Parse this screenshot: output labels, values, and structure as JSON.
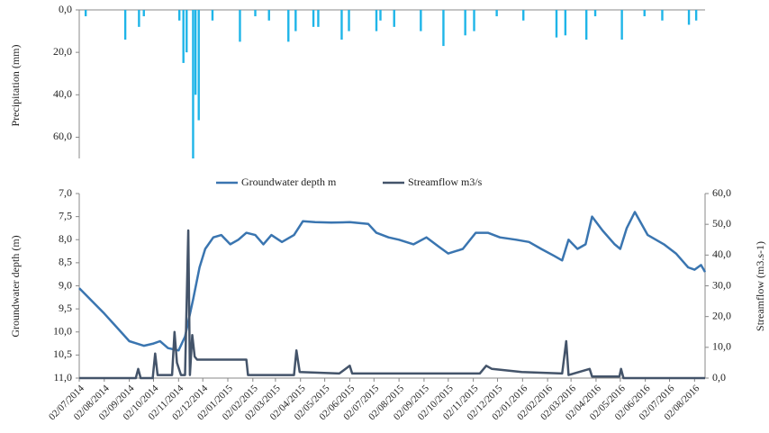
{
  "chart_data": [
    {
      "type": "bar",
      "y_label": "Precipitation (mm)",
      "color": "#1fb5e8",
      "y_inverted": true,
      "xlim": [
        "2014-07-02",
        "2016-08-15"
      ],
      "ylim": [
        0,
        70
      ],
      "yticks": [
        {
          "value": 0,
          "label": "0,0"
        },
        {
          "value": 20,
          "label": "20,0"
        },
        {
          "value": 40,
          "label": "40,0"
        },
        {
          "value": 60,
          "label": "60,0"
        }
      ],
      "x": [
        "2014-07-10",
        "2014-08-28",
        "2014-09-14",
        "2014-09-20",
        "2014-11-03",
        "2014-11-08",
        "2014-11-12",
        "2014-11-20",
        "2014-11-23",
        "2014-11-27",
        "2014-12-14",
        "2015-01-17",
        "2015-02-05",
        "2015-02-22",
        "2015-03-18",
        "2015-03-27",
        "2015-04-18",
        "2015-04-24",
        "2015-05-23",
        "2015-06-01",
        "2015-07-05",
        "2015-07-10",
        "2015-07-27",
        "2015-08-29",
        "2015-09-26",
        "2015-10-23",
        "2015-11-03",
        "2015-12-01",
        "2016-01-03",
        "2016-02-13",
        "2016-02-24",
        "2016-03-21",
        "2016-04-01",
        "2016-05-04",
        "2016-06-01",
        "2016-06-23",
        "2016-07-26",
        "2016-08-04"
      ],
      "values": [
        3,
        14,
        8,
        3,
        5,
        25,
        20,
        70,
        40,
        52,
        5,
        15,
        3,
        5,
        15,
        10,
        8,
        8,
        14,
        10,
        10,
        5,
        8,
        10,
        17,
        12,
        10,
        3,
        5,
        13,
        12,
        14,
        3,
        14,
        3,
        5,
        7,
        5
      ]
    },
    {
      "type": "line",
      "y_label": "Groundwater depth (m)",
      "y2_label": "Streamflow  (m3.s-1)",
      "y_inverted": true,
      "xlim": [
        "2014-07-02",
        "2016-08-15"
      ],
      "ylim": [
        7,
        11
      ],
      "y2lim": [
        0,
        60
      ],
      "yticks": [
        {
          "value": 7,
          "label": "7,0"
        },
        {
          "value": 7.5,
          "label": "7,5"
        },
        {
          "value": 8,
          "label": "8,0"
        },
        {
          "value": 8.5,
          "label": "8,5"
        },
        {
          "value": 9,
          "label": "9,0"
        },
        {
          "value": 9.5,
          "label": "9,5"
        },
        {
          "value": 10,
          "label": "10,0"
        },
        {
          "value": 10.5,
          "label": "10,5"
        },
        {
          "value": 11,
          "label": "11,0"
        }
      ],
      "y2ticks": [
        {
          "value": 0,
          "label": "0,0"
        },
        {
          "value": 10,
          "label": "10,0"
        },
        {
          "value": 20,
          "label": "20,0"
        },
        {
          "value": 30,
          "label": "30,0"
        },
        {
          "value": 40,
          "label": "40,0"
        },
        {
          "value": 50,
          "label": "50,0"
        },
        {
          "value": 60,
          "label": "60,0"
        }
      ],
      "xticks": [
        {
          "value": "2014-07-02",
          "label": "02/07/2014"
        },
        {
          "value": "2014-08-02",
          "label": "02/08/2014"
        },
        {
          "value": "2014-09-02",
          "label": "02/09/2014"
        },
        {
          "value": "2014-10-02",
          "label": "02/10/2014"
        },
        {
          "value": "2014-11-02",
          "label": "02/11/2014"
        },
        {
          "value": "2014-12-02",
          "label": "02/12/2014"
        },
        {
          "value": "2015-01-02",
          "label": "02/01/2015"
        },
        {
          "value": "2015-02-02",
          "label": "02/02/2015"
        },
        {
          "value": "2015-03-02",
          "label": "02/03/2015"
        },
        {
          "value": "2015-04-02",
          "label": "02/04/2015"
        },
        {
          "value": "2015-05-02",
          "label": "02/05/2015"
        },
        {
          "value": "2015-06-02",
          "label": "02/06/2015"
        },
        {
          "value": "2015-07-02",
          "label": "02/07/2015"
        },
        {
          "value": "2015-08-02",
          "label": "02/08/2015"
        },
        {
          "value": "2015-09-02",
          "label": "02/09/2015"
        },
        {
          "value": "2015-10-02",
          "label": "02/10/2015"
        },
        {
          "value": "2015-11-02",
          "label": "02/11/2015"
        },
        {
          "value": "2015-12-02",
          "label": "02/12/2015"
        },
        {
          "value": "2016-01-02",
          "label": "02/01/2016"
        },
        {
          "value": "2016-02-02",
          "label": "02/02/2016"
        },
        {
          "value": "2016-03-02",
          "label": "02/03/2016"
        },
        {
          "value": "2016-04-02",
          "label": "02/04/2016"
        },
        {
          "value": "2016-05-02",
          "label": "02/05/2016"
        },
        {
          "value": "2016-06-02",
          "label": "02/06/2016"
        },
        {
          "value": "2016-07-02",
          "label": "02/07/2016"
        },
        {
          "value": "2016-08-02",
          "label": "02/08/2016"
        }
      ],
      "series": [
        {
          "name": "Groundwater depth m",
          "color": "#3a75b0",
          "x": [
            "2014-07-02",
            "2014-08-02",
            "2014-09-02",
            "2014-09-20",
            "2014-10-02",
            "2014-10-10",
            "2014-10-20",
            "2014-11-02",
            "2014-11-10",
            "2014-11-20",
            "2014-11-28",
            "2014-12-05",
            "2014-12-15",
            "2014-12-25",
            "2015-01-05",
            "2015-01-15",
            "2015-01-25",
            "2015-02-05",
            "2015-02-15",
            "2015-02-25",
            "2015-03-10",
            "2015-03-25",
            "2015-04-05",
            "2015-04-20",
            "2015-05-10",
            "2015-06-02",
            "2015-06-25",
            "2015-07-05",
            "2015-07-20",
            "2015-08-02",
            "2015-08-20",
            "2015-09-05",
            "2015-09-20",
            "2015-10-02",
            "2015-10-20",
            "2015-11-05",
            "2015-11-20",
            "2015-12-05",
            "2015-12-25",
            "2016-01-10",
            "2016-01-25",
            "2016-02-10",
            "2016-02-20",
            "2016-02-28",
            "2016-03-10",
            "2016-03-20",
            "2016-03-28",
            "2016-04-10",
            "2016-04-25",
            "2016-05-02",
            "2016-05-10",
            "2016-05-20",
            "2016-06-05",
            "2016-06-25",
            "2016-07-10",
            "2016-07-25",
            "2016-08-02",
            "2016-08-10",
            "2016-08-15"
          ],
          "values": [
            9.05,
            9.6,
            10.2,
            10.3,
            10.25,
            10.2,
            10.35,
            10.4,
            10.1,
            9.3,
            8.6,
            8.2,
            7.95,
            7.9,
            8.1,
            8.0,
            7.85,
            7.9,
            8.1,
            7.9,
            8.05,
            7.9,
            7.6,
            7.62,
            7.63,
            7.62,
            7.66,
            7.85,
            7.95,
            8.0,
            8.1,
            7.95,
            8.15,
            8.3,
            8.2,
            7.85,
            7.85,
            7.95,
            8.0,
            8.05,
            8.2,
            8.35,
            8.45,
            8.0,
            8.2,
            8.1,
            7.5,
            7.8,
            8.1,
            8.2,
            7.75,
            7.4,
            7.9,
            8.1,
            8.3,
            8.6,
            8.65,
            8.55,
            8.7
          ]
        },
        {
          "name": "Streamflow m3/s",
          "color": "#44546a",
          "axis": "y2",
          "x": [
            "2014-07-02",
            "2014-09-10",
            "2014-09-13",
            "2014-09-16",
            "2014-10-01",
            "2014-10-04",
            "2014-10-07",
            "2014-10-25",
            "2014-10-28",
            "2014-10-31",
            "2014-11-05",
            "2014-11-10",
            "2014-11-14",
            "2014-11-16",
            "2014-11-19",
            "2014-11-22",
            "2014-11-25",
            "2014-12-20",
            "2015-01-25",
            "2015-01-27",
            "2015-03-25",
            "2015-03-28",
            "2015-04-01",
            "2015-05-20",
            "2015-06-02",
            "2015-06-05",
            "2015-09-25",
            "2015-11-10",
            "2015-11-18",
            "2015-11-25",
            "2016-01-01",
            "2016-02-20",
            "2016-02-25",
            "2016-02-28",
            "2016-03-25",
            "2016-03-28",
            "2016-05-01",
            "2016-05-03",
            "2016-05-06",
            "2016-08-15"
          ],
          "values": [
            0,
            0,
            3,
            0,
            0,
            8,
            1,
            1,
            15,
            5,
            1,
            1,
            48,
            1,
            14,
            7,
            6,
            6,
            6,
            1,
            1,
            9,
            2,
            1.5,
            4,
            1.5,
            1.5,
            1.5,
            4,
            3,
            2,
            1.5,
            12,
            1,
            3,
            0.5,
            0.5,
            3,
            0,
            0
          ]
        }
      ]
    }
  ]
}
